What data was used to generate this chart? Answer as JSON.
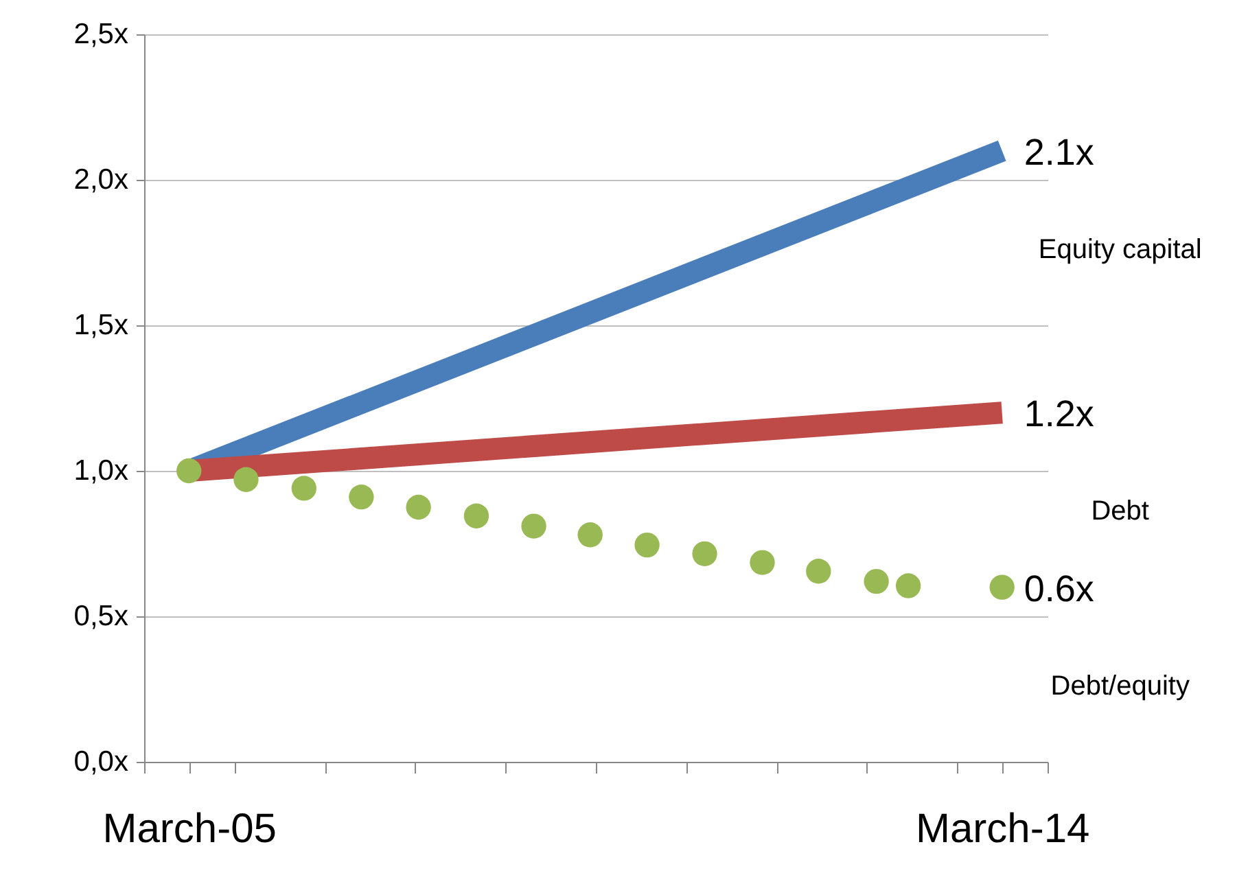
{
  "chart_data": {
    "type": "line",
    "xlim": [
      "2004-09",
      "2014-09"
    ],
    "xticks": [
      {
        "value": "2004-09",
        "label": null
      },
      {
        "value": "2005-03",
        "label": "March-05"
      },
      {
        "value": "2005-09",
        "label": null
      },
      {
        "value": "2006-09",
        "label": null
      },
      {
        "value": "2007-09",
        "label": null
      },
      {
        "value": "2008-09",
        "label": null
      },
      {
        "value": "2009-09",
        "label": null
      },
      {
        "value": "2010-09",
        "label": null
      },
      {
        "value": "2011-09",
        "label": null
      },
      {
        "value": "2012-09",
        "label": null
      },
      {
        "value": "2013-09",
        "label": null
      },
      {
        "value": "2014-03",
        "label": "March-14"
      },
      {
        "value": "2014-09",
        "label": null
      }
    ],
    "ylim": [
      0,
      2.5
    ],
    "yticks": [
      {
        "value": 0,
        "label": "0,0x"
      },
      {
        "value": 0.5,
        "label": "0,5x"
      },
      {
        "value": 1,
        "label": "1,0x"
      },
      {
        "value": 1.5,
        "label": "1,5x"
      },
      {
        "value": 2,
        "label": "2,0x"
      },
      {
        "value": 2.5,
        "label": "2,5x"
      }
    ],
    "grid": "y",
    "series": [
      {
        "name": "Equity capital",
        "color": "#4a7ebb",
        "x": [
          "2005-03",
          "2014-03"
        ],
        "values": [
          1.0,
          2.1
        ],
        "value_labels": [
          null,
          "2.1x"
        ]
      },
      {
        "name": "Debt",
        "color": "#be4b48",
        "x": [
          "2005-03",
          "2014-03"
        ],
        "values": [
          1.0,
          1.2
        ],
        "value_labels": [
          null,
          "1.2x"
        ]
      },
      {
        "name": "Debt/equity",
        "color": "#98b954",
        "type": "scatter",
        "marker": "circle",
        "x": [
          "2005-03",
          "2005-10-18",
          "2006-06-09",
          "2007-01-27",
          "2007-09-15",
          "2008-05-06",
          "2008-12-24",
          "2009-08-09",
          "2010-03-27",
          "2010-11-15",
          "2011-07-06",
          "2012-02-18",
          "2012-10-09",
          "2013-02-15",
          "2014-03"
        ],
        "values": [
          1.0,
          0.97,
          0.94,
          0.91,
          0.875,
          0.845,
          0.81,
          0.78,
          0.745,
          0.715,
          0.685,
          0.655,
          0.62,
          0.605,
          0.6
        ],
        "value_labels": [
          null,
          null,
          null,
          null,
          null,
          null,
          null,
          null,
          null,
          null,
          null,
          null,
          null,
          null,
          "0.6x"
        ]
      }
    ]
  }
}
